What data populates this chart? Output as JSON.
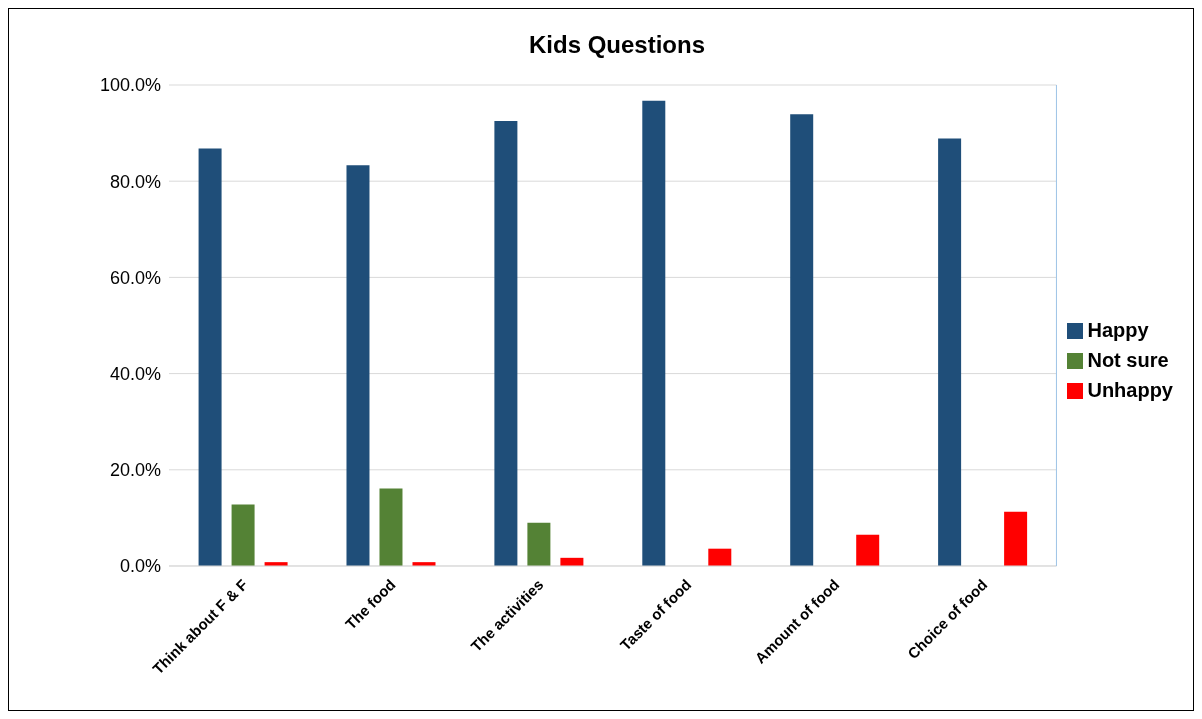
{
  "chart_data": {
    "type": "bar",
    "title": "Kids Questions",
    "categories": [
      "Think about F & F",
      "The food",
      "The activities",
      "Taste of food",
      "Amount of food",
      "Choice of food"
    ],
    "series": [
      {
        "name": "Happy",
        "color": "#1f4e79",
        "values": [
          86.8,
          83.3,
          92.5,
          96.7,
          93.9,
          88.9
        ]
      },
      {
        "name": "Not sure",
        "color": "#548235",
        "values": [
          12.8,
          16.1,
          9.0,
          0,
          0,
          0
        ]
      },
      {
        "name": "Unhappy",
        "color": "#ff0000",
        "values": [
          0.8,
          0.8,
          1.7,
          3.6,
          6.5,
          11.3
        ]
      }
    ],
    "ylim": [
      0,
      100
    ],
    "yticks": [
      {
        "value": 0,
        "label": "0.0%"
      },
      {
        "value": 20,
        "label": "20.0%"
      },
      {
        "value": 40,
        "label": "40.0%"
      },
      {
        "value": 60,
        "label": "60.0%"
      },
      {
        "value": 80,
        "label": "80.0%"
      },
      {
        "value": 100,
        "label": "100.0%"
      }
    ],
    "grid": "y",
    "legend": "right"
  }
}
